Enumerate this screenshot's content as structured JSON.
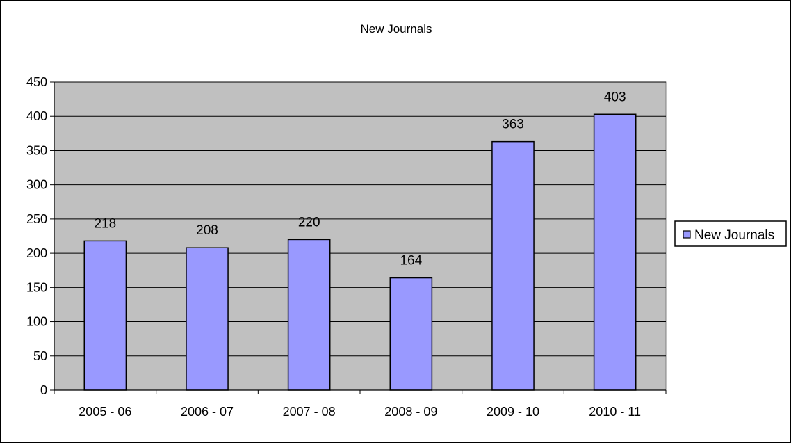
{
  "chart_data": {
    "type": "bar",
    "title": "New Journals",
    "xlabel": "",
    "ylabel": "",
    "categories": [
      "2005 - 06",
      "2006 - 07",
      "2007 - 08",
      "2008 - 09",
      "2009 - 10",
      "2010 - 11"
    ],
    "series": [
      {
        "name": "New Journals",
        "values": [
          218,
          208,
          220,
          164,
          363,
          403
        ]
      }
    ],
    "ylim": [
      0,
      450
    ],
    "yticks": [
      0,
      50,
      100,
      150,
      200,
      250,
      300,
      350,
      400,
      450
    ],
    "grid": true,
    "legend_position": "right",
    "data_labels": true,
    "colors": {
      "bar_fill": "#9999ff",
      "bar_stroke": "#000000",
      "plot_background": "#c0c0c0",
      "gridline": "#000000",
      "frame": "#000000"
    }
  }
}
